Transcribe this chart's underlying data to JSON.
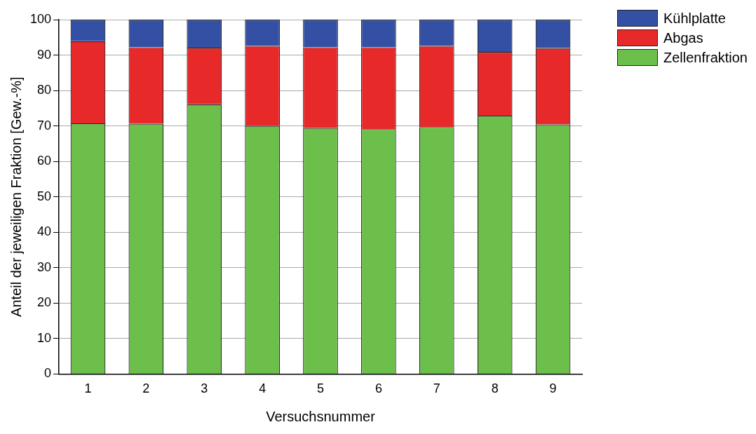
{
  "chart_data": {
    "type": "bar",
    "stacked": true,
    "xlabel": "Versuchsnummer",
    "ylabel": "Anteil der jeweiligen Fraktion [Gew.-%]",
    "categories": [
      "1",
      "2",
      "3",
      "4",
      "5",
      "6",
      "7",
      "8",
      "9"
    ],
    "series": [
      {
        "name": "Zellenfraktion",
        "color": "#6dbf4b",
        "values": [
          70.7,
          70.6,
          76.1,
          70.0,
          69.4,
          69.1,
          69.7,
          72.9,
          70.4
        ]
      },
      {
        "name": "Abgas",
        "color": "#e8292a",
        "values": [
          23.2,
          21.6,
          16.0,
          22.6,
          22.8,
          23.1,
          22.9,
          18.0,
          21.6
        ]
      },
      {
        "name": "Kühlplatte",
        "color": "#3450a4",
        "values": [
          6.1,
          7.8,
          7.9,
          7.4,
          7.8,
          7.8,
          7.4,
          9.1,
          8.0
        ]
      }
    ],
    "ylim": [
      0,
      100
    ],
    "yticks": [
      0,
      10,
      20,
      30,
      40,
      50,
      60,
      70,
      80,
      90,
      100
    ],
    "grid": "y",
    "legend": "top right"
  }
}
